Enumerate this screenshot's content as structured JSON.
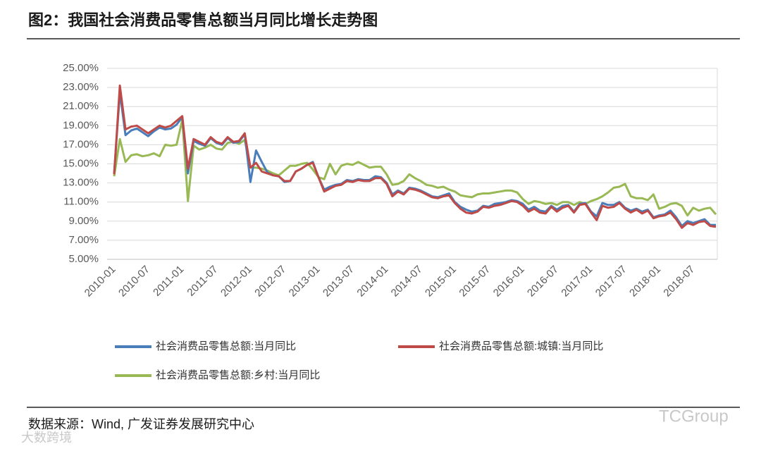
{
  "chart_data": {
    "type": "line",
    "title": "图2：我国社会消费品零售总额当月同比增长走势图",
    "categories": [
      "2010-01",
      null,
      null,
      null,
      null,
      null,
      "2010-07",
      null,
      null,
      null,
      null,
      null,
      "2011-01",
      null,
      null,
      null,
      null,
      null,
      "2011-07",
      null,
      null,
      null,
      null,
      null,
      "2012-01",
      null,
      null,
      null,
      null,
      null,
      "2012-07",
      null,
      null,
      null,
      null,
      null,
      "2013-01",
      null,
      null,
      null,
      null,
      null,
      "2013-07",
      null,
      null,
      null,
      null,
      null,
      "2014-01",
      null,
      null,
      null,
      null,
      null,
      "2014-07",
      null,
      null,
      null,
      null,
      null,
      "2015-01",
      null,
      null,
      null,
      null,
      null,
      "2015-07",
      null,
      null,
      null,
      null,
      null,
      "2016-01",
      null,
      null,
      null,
      null,
      null,
      "2016-07",
      null,
      null,
      null,
      null,
      null,
      "2017-01",
      null,
      null,
      null,
      null,
      null,
      "2017-07",
      null,
      null,
      null,
      null,
      null,
      "2018-01",
      null,
      null,
      null,
      null,
      null,
      "2018-07",
      null,
      null,
      null,
      null
    ],
    "series": [
      {
        "name": "社会消费品零售总额:当月同比",
        "color": "#4a7ebb",
        "values": [
          14.0,
          22.5,
          18.0,
          18.5,
          18.7,
          18.3,
          17.9,
          18.4,
          18.8,
          18.6,
          18.7,
          19.1,
          19.9,
          14.0,
          17.4,
          17.1,
          16.9,
          17.7,
          17.2,
          17.0,
          17.7,
          17.2,
          17.3,
          18.1,
          13.1,
          16.4,
          15.2,
          14.1,
          13.8,
          13.7,
          13.1,
          13.2,
          14.2,
          14.5,
          14.9,
          15.2,
          13.6,
          12.3,
          12.6,
          12.8,
          12.9,
          13.3,
          13.2,
          13.4,
          13.3,
          13.3,
          13.7,
          13.6,
          13.0,
          11.8,
          12.2,
          11.9,
          12.5,
          12.4,
          12.2,
          11.9,
          11.6,
          11.5,
          11.7,
          11.9,
          11.0,
          10.5,
          10.2,
          10.0,
          10.1,
          10.6,
          10.5,
          10.8,
          10.9,
          11.0,
          11.2,
          11.1,
          10.8,
          10.2,
          10.5,
          10.1,
          10.0,
          10.6,
          10.2,
          10.6,
          10.7,
          10.0,
          10.8,
          10.9,
          10.0,
          9.5,
          10.9,
          10.7,
          10.7,
          11.0,
          10.4,
          10.1,
          10.3,
          10.0,
          10.2,
          9.4,
          9.6,
          9.7,
          10.1,
          9.4,
          8.5,
          9.0,
          8.8,
          9.0,
          9.2,
          8.6,
          8.6
        ]
      },
      {
        "name": "社会消费品零售总额:城镇:当月同比",
        "color": "#be4b48",
        "values": [
          13.9,
          23.2,
          18.6,
          18.9,
          19.0,
          18.6,
          18.2,
          18.6,
          19.0,
          18.8,
          19.0,
          19.5,
          20.0,
          14.5,
          17.6,
          17.3,
          17.0,
          17.8,
          17.3,
          17.1,
          17.8,
          17.3,
          17.4,
          18.2,
          14.6,
          15.1,
          14.2,
          14.0,
          13.8,
          13.7,
          13.2,
          13.2,
          14.2,
          14.5,
          14.9,
          15.1,
          13.6,
          12.1,
          12.4,
          12.7,
          12.8,
          13.2,
          13.1,
          13.3,
          13.2,
          13.2,
          13.5,
          13.5,
          12.9,
          11.6,
          12.1,
          11.8,
          12.4,
          12.3,
          12.1,
          11.8,
          11.5,
          11.4,
          11.6,
          11.7,
          10.9,
          10.3,
          9.9,
          9.8,
          10.0,
          10.5,
          10.4,
          10.6,
          10.7,
          10.9,
          11.1,
          11.0,
          10.6,
          10.0,
          10.3,
          9.9,
          9.8,
          10.5,
          10.0,
          10.4,
          10.6,
          9.9,
          10.7,
          10.8,
          9.9,
          9.1,
          10.6,
          10.4,
          10.5,
          10.9,
          10.3,
          9.9,
          10.2,
          9.8,
          10.1,
          9.3,
          9.5,
          9.6,
          9.9,
          9.2,
          8.3,
          8.8,
          8.6,
          8.9,
          9.0,
          8.5,
          8.4
        ]
      },
      {
        "name": "社会消费品零售总额:乡村:当月同比",
        "color": "#98b954",
        "values": [
          13.7,
          17.6,
          15.2,
          15.9,
          16.0,
          15.8,
          15.9,
          16.1,
          15.8,
          17.0,
          16.9,
          17.0,
          19.6,
          11.1,
          16.9,
          16.5,
          16.7,
          17.0,
          16.6,
          16.5,
          17.2,
          17.3,
          17.1,
          17.5,
          14.6,
          14.6,
          14.5,
          14.3,
          14.0,
          13.8,
          14.3,
          14.8,
          14.8,
          15.0,
          15.1,
          14.4,
          13.6,
          13.4,
          15.0,
          13.9,
          14.8,
          15.0,
          14.9,
          15.2,
          14.9,
          14.6,
          14.7,
          14.7,
          13.9,
          12.8,
          12.9,
          13.2,
          13.9,
          13.5,
          13.2,
          12.8,
          12.7,
          12.5,
          12.6,
          12.3,
          12.1,
          11.7,
          11.6,
          11.5,
          11.8,
          11.9,
          11.9,
          12.0,
          12.1,
          12.2,
          12.2,
          12.0,
          11.3,
          10.8,
          11.1,
          11.0,
          10.8,
          10.9,
          10.7,
          11.0,
          11.0,
          10.7,
          11.0,
          10.8,
          11.1,
          11.3,
          11.6,
          12.0,
          12.5,
          12.6,
          12.9,
          11.6,
          11.4,
          11.4,
          11.2,
          11.8,
          10.3,
          10.5,
          10.8,
          10.9,
          10.6,
          9.6,
          10.4,
          10.1,
          10.3,
          10.4,
          9.7
        ]
      }
    ],
    "ylim": [
      5,
      25
    ],
    "yticks": [
      {
        "value": 5,
        "label": "5.00%"
      },
      {
        "value": 7,
        "label": "7.00%"
      },
      {
        "value": 9,
        "label": "9.00%"
      },
      {
        "value": 11,
        "label": "11.00%"
      },
      {
        "value": 13,
        "label": "13.00%"
      },
      {
        "value": 15,
        "label": "15.00%"
      },
      {
        "value": 17,
        "label": "17.00%"
      },
      {
        "value": 19,
        "label": "19.00%"
      },
      {
        "value": 21,
        "label": "21.00%"
      },
      {
        "value": 23,
        "label": "23.00%"
      },
      {
        "value": 25,
        "label": "25.00%"
      }
    ],
    "grid": true
  },
  "footer": {
    "source": "数据来源：Wind, 广发证券发展研究中心"
  },
  "watermarks": [
    "TCGroup",
    "大数跨境"
  ]
}
